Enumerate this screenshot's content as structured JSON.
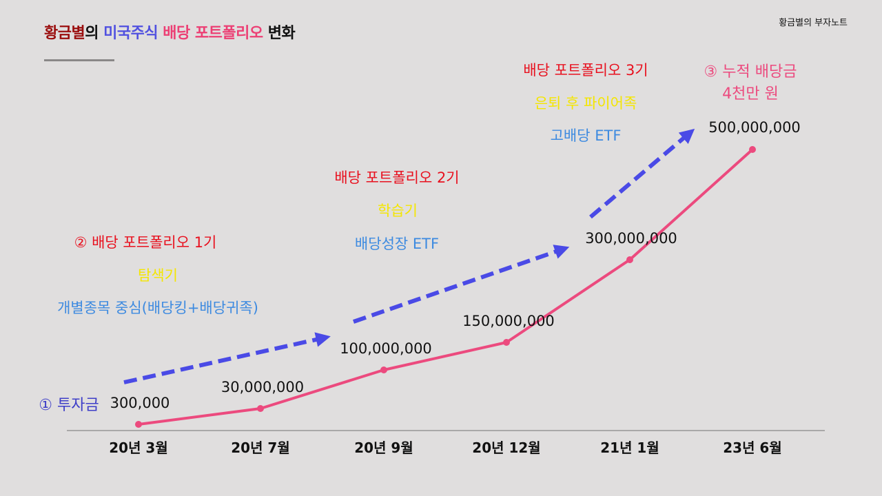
{
  "header": {
    "title_parts": [
      "황금별",
      "의",
      " 미국주식",
      " 배당 포트폴리오",
      " 변화"
    ],
    "colors": [
      "#9a0d0d",
      "#111111",
      "#5050e0",
      "#ec3f74",
      "#111111"
    ],
    "brand": "황금별의 부자노트"
  },
  "annotations": {
    "start": "① 투자금",
    "phase1": {
      "name": "②  배당 포트폴리오 1기",
      "stage": "탐색기",
      "strategy": "개별종목 중심(배당킹+배당귀족)"
    },
    "phase2": {
      "name": "배당 포트폴리오 2기",
      "stage": "학습기",
      "strategy": "배당성장 ETF"
    },
    "phase3": {
      "name": "배당 포트폴리오 3기",
      "stage": "은퇴 후 파이어족",
      "strategy": "고배당 ETF"
    },
    "dividend": {
      "line1": "③ 누적 배당금",
      "line2": "4천만 원"
    }
  },
  "colors": {
    "line": "#ec4a7e",
    "arrow": "#4a4ae6",
    "axis": "#888888"
  },
  "chart_data": {
    "type": "line",
    "categories": [
      "20년 3월",
      "20년 7월",
      "20년 9월",
      "20년 12월",
      "21년 1월",
      "23년 6월"
    ],
    "values": [
      300000,
      30000000,
      100000000,
      150000000,
      300000000,
      500000000
    ],
    "value_labels": [
      "300,000",
      "30,000,000",
      "100,000,000",
      "150,000,000",
      "300,000,000",
      "500,000,000"
    ],
    "title": "황금별의 미국주식 배당 포트폴리오 변화",
    "xlabel": "",
    "ylabel": ""
  }
}
